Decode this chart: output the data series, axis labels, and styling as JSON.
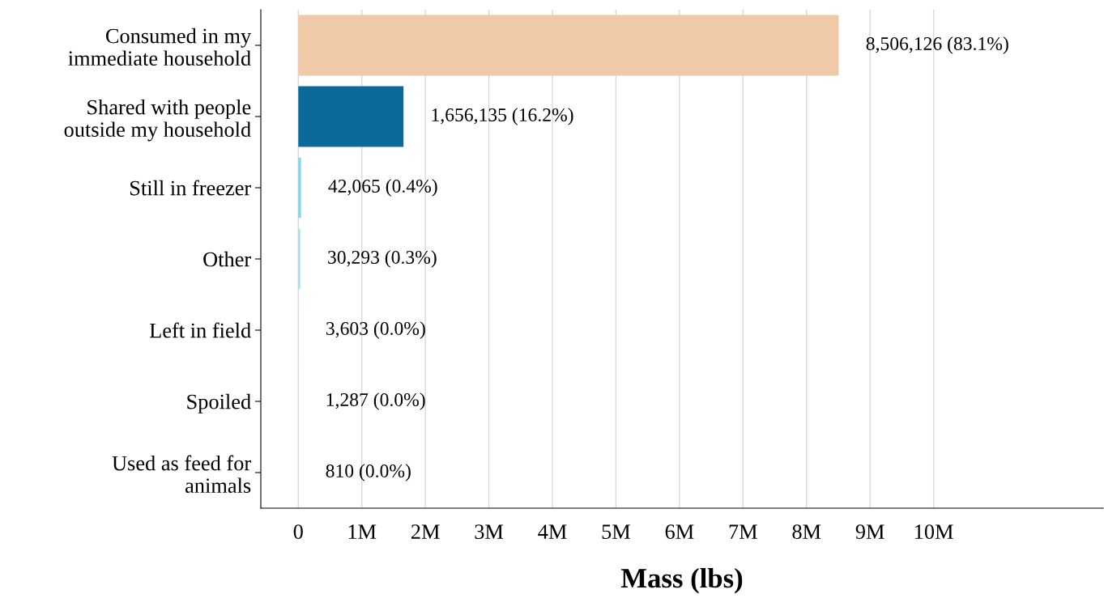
{
  "chart_data": {
    "type": "bar",
    "orientation": "horizontal",
    "xlabel": "Mass (lbs)",
    "categories": [
      "Consumed in my\nimmediate household",
      "Shared with people\noutside my household",
      "Still in freezer",
      "Other",
      "Left in field",
      "Spoiled",
      "Used as feed for\nanimals"
    ],
    "values": [
      8506126,
      1656135,
      42065,
      30293,
      3603,
      1287,
      810
    ],
    "colors": [
      "#f0c9a8",
      "#0b6a9a",
      "#7fd6e4",
      "#a9e0ea",
      "#f2d3c4",
      "#e8c6b0",
      "#d9a98a"
    ],
    "value_labels": [
      "8,506,126 (83.1%)",
      "1,656,135 (16.2%)",
      "42,065 (0.4%)",
      "30,293 (0.3%)",
      "3,603 (0.0%)",
      "1,287 (0.0%)",
      "810 (0.0%)"
    ],
    "xlim": [
      -590000,
      12670000
    ],
    "xticks": [
      0,
      {
        "value": 1000000,
        "label": "1M"
      },
      {
        "value": 2000000,
        "label": "2M"
      },
      {
        "value": 3000000,
        "label": "3M"
      },
      {
        "value": 4000000,
        "label": "4M"
      },
      {
        "value": 5000000,
        "label": "5M"
      },
      {
        "value": 6000000,
        "label": "6M"
      },
      {
        "value": 7000000,
        "label": "7M"
      },
      {
        "value": 8000000,
        "label": "8M"
      },
      {
        "value": 9000000,
        "label": "9M"
      },
      {
        "value": 10000000,
        "label": "10M"
      }
    ],
    "grid": "x"
  }
}
